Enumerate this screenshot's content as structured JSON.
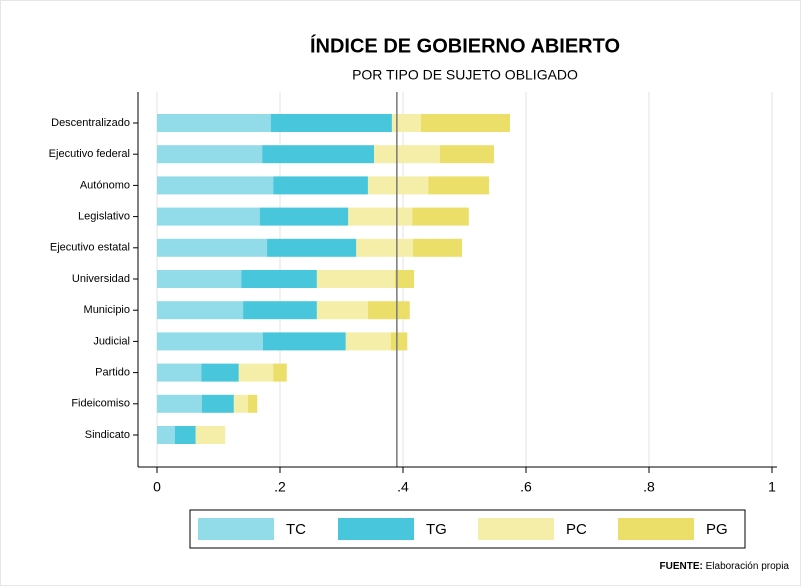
{
  "chart_data": {
    "type": "stacked_barh",
    "title": "ÍNDICE DE GOBIERNO ABIERTO",
    "subtitle": "POR TIPO DE SUJETO OBLIGADO",
    "categories": [
      "Descentralizado",
      "Ejecutivo federal",
      "Autónomo",
      "Legislativo",
      "Ejecutivo estatal",
      "Universidad",
      "Municipio",
      "Judicial",
      "Partido",
      "Fideicomiso",
      "Sindicato"
    ],
    "series": [
      {
        "name": "TC",
        "color": "#92dbe8",
        "values": [
          0.185,
          0.171,
          0.189,
          0.167,
          0.179,
          0.137,
          0.14,
          0.172,
          0.072,
          0.073,
          0.029
        ]
      },
      {
        "name": "TG",
        "color": "#48c6dc",
        "values": [
          0.197,
          0.182,
          0.154,
          0.144,
          0.145,
          0.123,
          0.12,
          0.135,
          0.061,
          0.052,
          0.034
        ]
      },
      {
        "name": "PC",
        "color": "#f5eea8",
        "values": [
          0.047,
          0.107,
          0.098,
          0.104,
          0.092,
          0.127,
          0.083,
          0.073,
          0.056,
          0.023,
          0.048
        ]
      },
      {
        "name": "PG",
        "color": "#ebdf6a",
        "values": [
          0.145,
          0.088,
          0.099,
          0.092,
          0.08,
          0.031,
          0.068,
          0.027,
          0.022,
          0.015,
          0
        ]
      }
    ],
    "xlim": [
      0,
      1
    ],
    "xticks": [
      0,
      {
        "value": 0.2,
        "label": ".2"
      },
      {
        "value": 0.4,
        "label": ".4"
      },
      {
        "value": 0.6,
        "label": ".6"
      },
      {
        "value": 0.8,
        "label": ".8"
      },
      1
    ],
    "reference_line": 0.39,
    "grid": true,
    "legend": "bottom",
    "source_label": "FUENTE:",
    "source_text": "Elaboración propia"
  }
}
